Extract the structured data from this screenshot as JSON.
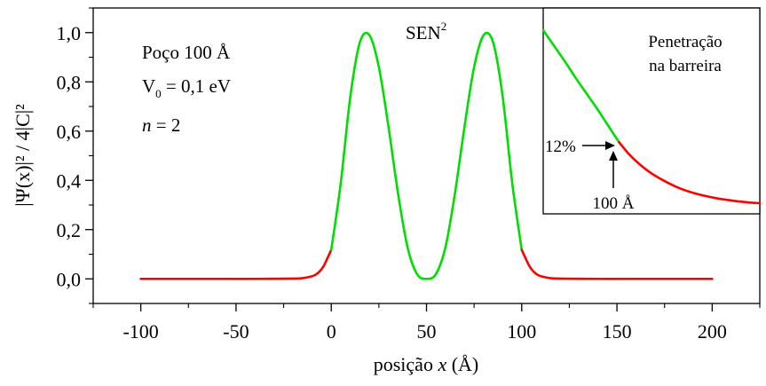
{
  "chart_data": [
    {
      "type": "line",
      "title": "",
      "xlabel": {
        "prefix": "posição ",
        "var": "x",
        "suffix": " (Å)"
      },
      "ylabel": {
        "text": "|Ψ(x)|² / 4|C|²"
      },
      "xlim": [
        -125,
        225
      ],
      "ylim": [
        -0.1,
        1.1
      ],
      "xticks": [
        -100,
        -50,
        0,
        50,
        100,
        150,
        200
      ],
      "xtick_labels": [
        "-100",
        "-50",
        "0",
        "50",
        "100",
        "150",
        "200"
      ],
      "yticks": [
        0.0,
        0.2,
        0.4,
        0.6,
        0.8,
        1.0
      ],
      "ytick_labels": [
        "0,0",
        "0,2",
        "0,4",
        "0,6",
        "0,8",
        "1,0"
      ],
      "grid": false,
      "annotations": {
        "well": "Poço 100 Å",
        "v0_base": "V",
        "v0_sub": "0",
        "v0_rest": " = 0,1 eV",
        "n_var": "n",
        "n_rest": " = 2",
        "curve_label": "SEN",
        "curve_label_sup": "2"
      },
      "series": [
        {
          "color": "#ff0000",
          "x": [
            -100,
            -60,
            -40,
            -20,
            -15,
            -10,
            -8,
            -6,
            -4,
            -2,
            0
          ],
          "y": [
            0.0,
            0.0,
            0.0,
            0.001,
            0.003,
            0.011,
            0.018,
            0.031,
            0.052,
            0.084,
            0.118
          ]
        },
        {
          "color": "#00dd00",
          "x": [
            0,
            5,
            10,
            15,
            20,
            25,
            30,
            35,
            40,
            45,
            50,
            55,
            60,
            65,
            70,
            75,
            80,
            85,
            90,
            95,
            100
          ],
          "y": [
            0.118,
            0.39,
            0.74,
            0.96,
            0.99,
            0.86,
            0.62,
            0.35,
            0.13,
            0.02,
            0.0,
            0.02,
            0.13,
            0.35,
            0.62,
            0.86,
            0.99,
            0.96,
            0.74,
            0.39,
            0.118
          ]
        },
        {
          "color": "#ff0000",
          "x": [
            100,
            102,
            104,
            106,
            108,
            110,
            115,
            120,
            140,
            160,
            200
          ],
          "y": [
            0.118,
            0.084,
            0.052,
            0.031,
            0.018,
            0.011,
            0.003,
            0.001,
            0.0,
            0.0,
            0.0
          ]
        }
      ]
    },
    {
      "type": "line",
      "title": "",
      "inset": true,
      "label_lines": [
        "Penetração",
        "na barreira"
      ],
      "percent_label": "12%",
      "position_label": "100 Å",
      "xlim": [
        0,
        1
      ],
      "ylim": [
        0,
        1
      ],
      "series": [
        {
          "color": "#00dd00",
          "x": [
            0.0,
            0.05,
            0.1,
            0.15,
            0.2,
            0.25,
            0.3,
            0.35
          ],
          "y": [
            1.0,
            0.915,
            0.83,
            0.74,
            0.655,
            0.57,
            0.48,
            0.39
          ]
        },
        {
          "color": "#ff0000",
          "x": [
            0.35,
            0.4,
            0.45,
            0.5,
            0.55,
            0.6,
            0.65,
            0.7,
            0.75,
            0.8,
            0.85,
            0.9,
            0.95,
            1.0
          ],
          "y": [
            0.39,
            0.32,
            0.265,
            0.22,
            0.185,
            0.155,
            0.13,
            0.112,
            0.097,
            0.085,
            0.076,
            0.068,
            0.062,
            0.058
          ]
        }
      ]
    }
  ]
}
